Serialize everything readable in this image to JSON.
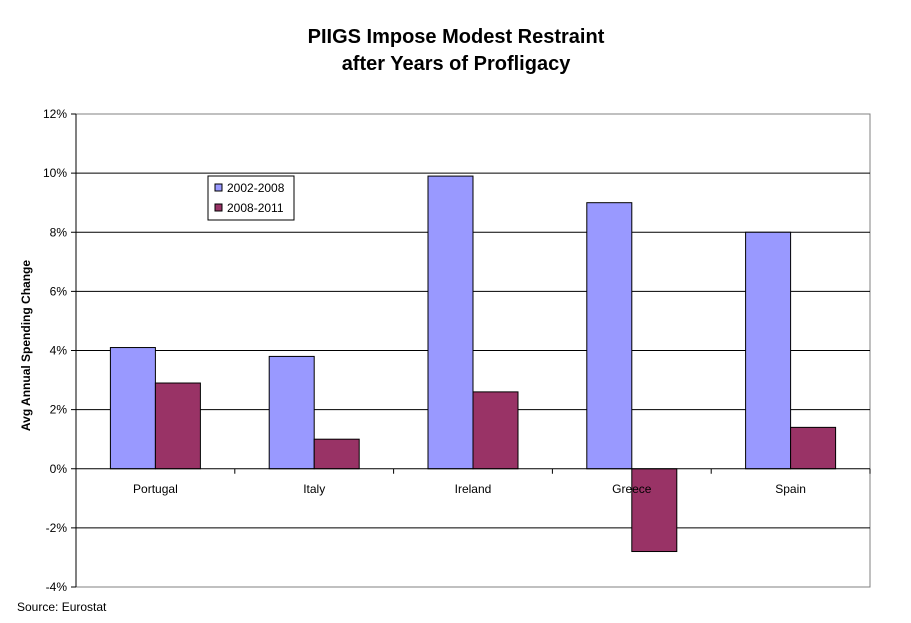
{
  "chart_data": {
    "type": "bar",
    "title": "PIIGS Impose Modest Restraint",
    "subtitle": "after Years of Profligacy",
    "xlabel": "",
    "ylabel": "Avg Annual Spending Change",
    "categories": [
      "Portugal",
      "Italy",
      "Ireland",
      "Greece",
      "Spain"
    ],
    "series": [
      {
        "name": "2002-2008",
        "color": "#9999ff",
        "values": [
          4.1,
          3.8,
          9.9,
          9.0,
          8.0
        ]
      },
      {
        "name": "2008-2011",
        "color": "#993366",
        "values": [
          2.9,
          1.0,
          2.6,
          -2.8,
          1.4
        ]
      }
    ],
    "ylim": [
      -4,
      12
    ],
    "yticks": [
      -4,
      -2,
      0,
      2,
      4,
      6,
      8,
      10,
      12
    ],
    "ytick_labels": [
      "-4%",
      "-2%",
      "0%",
      "2%",
      "4%",
      "6%",
      "8%",
      "10%",
      "12%"
    ],
    "grid": true,
    "legend_placement": "top-left",
    "source": "Source: Eurostat"
  }
}
